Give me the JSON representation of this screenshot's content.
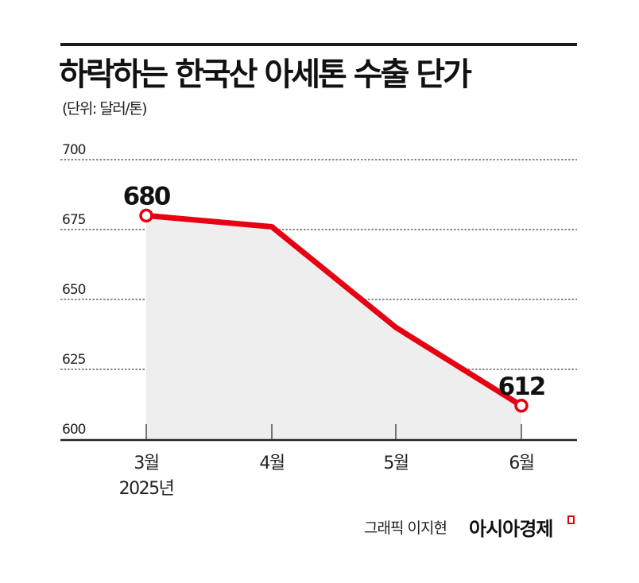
{
  "header": {
    "title": "하락하는 한국산 아세톤 수출 단가",
    "unit": "(단위: 달러/톤)"
  },
  "chart_data": {
    "type": "area",
    "title": "하락하는 한국산 아세톤 수출 단가",
    "subtitle": "(단위: 달러/톤)",
    "xlabel": "",
    "ylabel": "달러/톤",
    "categories": [
      "3월",
      "4월",
      "5월",
      "6월"
    ],
    "category_sublabels": [
      "2025년",
      "",
      "",
      ""
    ],
    "values": [
      680,
      676,
      640,
      612
    ],
    "data_labels": [
      {
        "index": 0,
        "text": "680"
      },
      {
        "index": 3,
        "text": "612"
      }
    ],
    "yticks": [
      "700",
      "675",
      "650",
      "625",
      "600"
    ],
    "ylim": [
      600,
      700
    ],
    "grid": "horizontal dotted",
    "legend": "none",
    "colors": {
      "line": "#e60012",
      "fill": "#eeeeee",
      "axis": "#222222"
    }
  },
  "footer": {
    "credit": "그래픽 이지현",
    "brand": "아시아경제"
  }
}
